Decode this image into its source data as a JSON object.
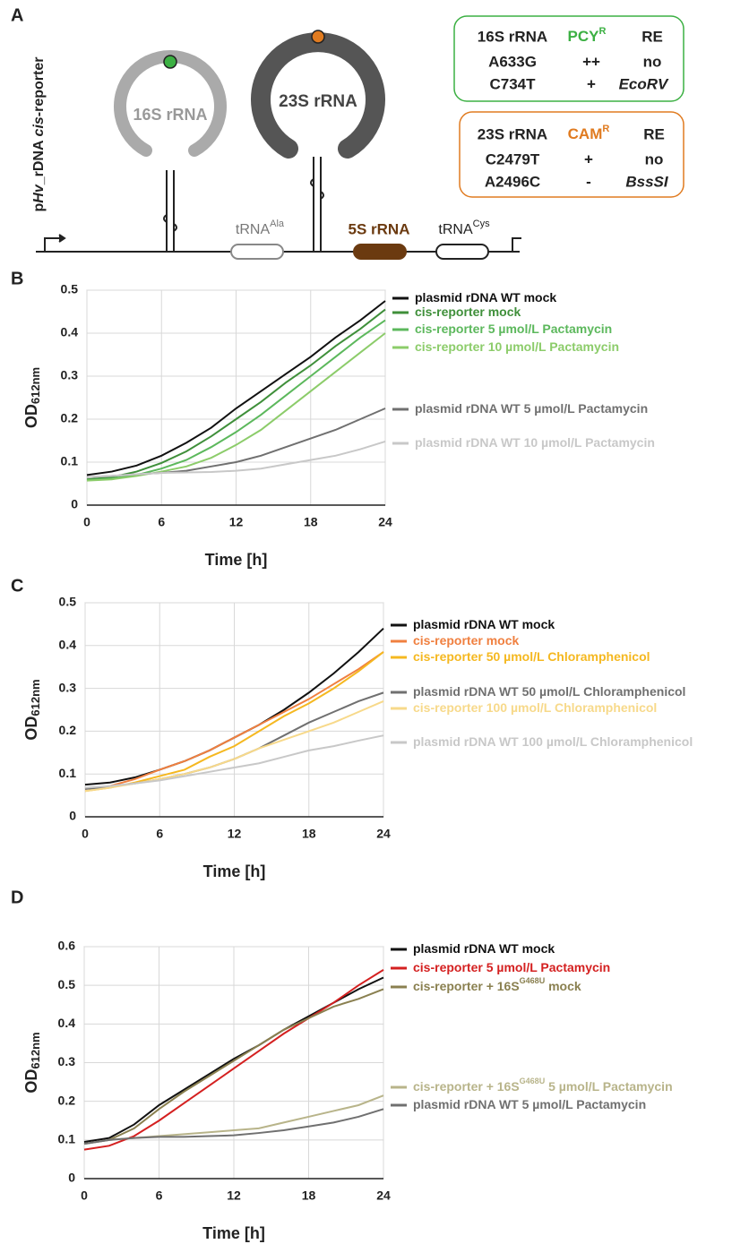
{
  "figure": {
    "panel_a": {
      "label": "A",
      "construct_label": [
        "p",
        "Hv",
        "_rDNA",
        "cis",
        "-reporter"
      ],
      "rrna_16s": "16S rRNA",
      "rrna_23s": "23S rRNA",
      "trna_ala": {
        "text": "tRNA",
        "superscript": "Ala"
      },
      "rrna_5s": "5S rRNA",
      "trna_cys": {
        "text": "tRNA",
        "superscript": "Cys"
      },
      "tables": [
        {
          "header": [
            "16S rRNA",
            {
              "text": "PCY",
              "superscript": "R"
            },
            "RE"
          ],
          "rows": [
            [
              "A633G",
              "++",
              "no"
            ],
            [
              "C734T",
              "+",
              "EcoRV"
            ]
          ]
        },
        {
          "header": [
            "23S rRNA",
            {
              "text": "CAM",
              "superscript": "R"
            },
            "RE"
          ],
          "rows": [
            [
              "C2479T",
              "+",
              "no"
            ],
            [
              "A2496C",
              "-",
              "BssSI"
            ]
          ]
        }
      ]
    }
  },
  "chart_data": [
    {
      "type": "line",
      "panel": "B",
      "xlabel": "Time [h]",
      "ylabel": "OD",
      "ylabel_subscript": "612nm",
      "x": [
        0,
        2,
        4,
        6,
        8,
        10,
        12,
        14,
        16,
        18,
        20,
        22,
        24
      ],
      "xlim": [
        0,
        24
      ],
      "xticks": [
        0,
        6,
        12,
        18,
        24
      ],
      "ylim": [
        0,
        0.5
      ],
      "yticks": [
        0,
        0.1,
        0.2,
        0.3,
        0.4,
        0.5
      ],
      "grid": true,
      "series": [
        {
          "name": "plasmid rDNA WT mock",
          "color": "#111111",
          "values": [
            0.07,
            0.078,
            0.092,
            0.115,
            0.145,
            0.18,
            0.225,
            0.265,
            0.305,
            0.345,
            0.39,
            0.43,
            0.475
          ]
        },
        {
          "name": "cis-reporter mock",
          "color": "#3f8f3a",
          "values": [
            0.06,
            0.065,
            0.078,
            0.098,
            0.125,
            0.16,
            0.2,
            0.24,
            0.285,
            0.325,
            0.37,
            0.41,
            0.455
          ]
        },
        {
          "name": "cis-reporter 5 µmol/L  Pactamycin",
          "color": "#5cb85c",
          "values": [
            0.058,
            0.062,
            0.07,
            0.085,
            0.105,
            0.135,
            0.17,
            0.21,
            0.255,
            0.3,
            0.345,
            0.39,
            0.43
          ]
        },
        {
          "name": "cis-reporter 10 µmol/L  Pactamycin",
          "color": "#8ccc6a",
          "values": [
            0.057,
            0.06,
            0.068,
            0.078,
            0.09,
            0.11,
            0.14,
            0.175,
            0.22,
            0.265,
            0.31,
            0.355,
            0.4
          ]
        },
        {
          "name": "plasmid rDNA WT 5 µmol/L  Pactamycin",
          "color": "#707070",
          "values": [
            0.065,
            0.068,
            0.072,
            0.075,
            0.08,
            0.09,
            0.1,
            0.115,
            0.135,
            0.155,
            0.175,
            0.2,
            0.225
          ]
        },
        {
          "name": "plasmid rDNA WT 10 µmol/L  Pactamycin",
          "color": "#c8c8c8",
          "values": [
            0.065,
            0.068,
            0.072,
            0.075,
            0.076,
            0.077,
            0.08,
            0.085,
            0.095,
            0.105,
            0.115,
            0.13,
            0.148
          ]
        }
      ]
    },
    {
      "type": "line",
      "panel": "C",
      "xlabel": "Time [h]",
      "ylabel": "OD",
      "ylabel_subscript": "612nm",
      "x": [
        0,
        2,
        4,
        6,
        8,
        10,
        12,
        14,
        16,
        18,
        20,
        22,
        24
      ],
      "xlim": [
        0,
        24
      ],
      "xticks": [
        0,
        6,
        12,
        18,
        24
      ],
      "ylim": [
        0,
        0.5
      ],
      "yticks": [
        0,
        0.1,
        0.2,
        0.3,
        0.4,
        0.5
      ],
      "grid": true,
      "series": [
        {
          "name": "plasmid rDNA WT mock",
          "color": "#111111",
          "values": [
            0.075,
            0.08,
            0.092,
            0.11,
            0.13,
            0.155,
            0.185,
            0.215,
            0.25,
            0.29,
            0.335,
            0.385,
            0.44
          ]
        },
        {
          "name": "cis-reporter mock",
          "color": "#f08040",
          "values": [
            0.065,
            0.072,
            0.088,
            0.11,
            0.13,
            0.155,
            0.185,
            0.215,
            0.245,
            0.275,
            0.31,
            0.345,
            0.385
          ]
        },
        {
          "name": "cis-reporter 50 µmol/L  Chloramphenicol",
          "color": "#f5b820",
          "values": [
            0.06,
            0.068,
            0.08,
            0.095,
            0.11,
            0.14,
            0.165,
            0.2,
            0.235,
            0.265,
            0.3,
            0.34,
            0.385
          ]
        },
        {
          "name": "plasmid rDNA WT 50 µmol/L  Chloramphenicol",
          "color": "#707070",
          "values": [
            0.065,
            0.07,
            0.078,
            0.088,
            0.1,
            0.115,
            0.135,
            0.16,
            0.19,
            0.22,
            0.245,
            0.27,
            0.29
          ]
        },
        {
          "name": "cis-reporter 100 µmol/L  Chloramphenicol",
          "color": "#f7d98a",
          "values": [
            0.06,
            0.068,
            0.078,
            0.088,
            0.1,
            0.115,
            0.135,
            0.16,
            0.18,
            0.2,
            0.22,
            0.245,
            0.27
          ]
        },
        {
          "name": "plasmid rDNA WT 100 µmol/L Chloramphenicol",
          "color": "#c8c8c8",
          "values": [
            0.068,
            0.072,
            0.078,
            0.085,
            0.095,
            0.105,
            0.115,
            0.125,
            0.14,
            0.155,
            0.165,
            0.178,
            0.19
          ]
        }
      ]
    },
    {
      "type": "line",
      "panel": "D",
      "xlabel": "Time [h]",
      "ylabel": "OD",
      "ylabel_subscript": "612nm",
      "x": [
        0,
        2,
        4,
        6,
        8,
        10,
        12,
        14,
        16,
        18,
        20,
        22,
        24
      ],
      "xlim": [
        0,
        24
      ],
      "xticks": [
        0,
        6,
        12,
        18,
        24
      ],
      "ylim": [
        0,
        0.6
      ],
      "yticks": [
        0,
        0.1,
        0.2,
        0.3,
        0.4,
        0.5,
        0.6
      ],
      "grid": true,
      "series": [
        {
          "name": "plasmid rDNA WT mock",
          "color": "#111111",
          "values": [
            0.095,
            0.105,
            0.14,
            0.19,
            0.23,
            0.27,
            0.31,
            0.345,
            0.385,
            0.42,
            0.455,
            0.49,
            0.52
          ]
        },
        {
          "name": "cis-reporter 5 µmol/L Pactamycin",
          "color": "#d42020",
          "values": [
            0.075,
            0.085,
            0.11,
            0.15,
            0.195,
            0.24,
            0.285,
            0.33,
            0.375,
            0.415,
            0.455,
            0.5,
            0.54
          ]
        },
        {
          "name": "cis-reporter + 16S",
          "name_superscript": "G468U",
          "name_suffix": " mock",
          "color": "#8a8050",
          "values": [
            0.09,
            0.1,
            0.13,
            0.18,
            0.225,
            0.265,
            0.305,
            0.345,
            0.385,
            0.415,
            0.445,
            0.465,
            0.49
          ]
        },
        {
          "name": "cis-reporter + 16S",
          "name_superscript": "G468U",
          "name_suffix": " 5 µmol/L Pactamycin",
          "color": "#b8b48a",
          "values": [
            0.09,
            0.1,
            0.105,
            0.11,
            0.115,
            0.12,
            0.125,
            0.13,
            0.145,
            0.16,
            0.175,
            0.19,
            0.215
          ]
        },
        {
          "name": "plasmid rDNA WT 5 µmol/L  Pactamycin",
          "color": "#707070",
          "values": [
            0.09,
            0.1,
            0.105,
            0.108,
            0.108,
            0.11,
            0.112,
            0.118,
            0.125,
            0.135,
            0.145,
            0.16,
            0.18
          ]
        }
      ]
    }
  ]
}
